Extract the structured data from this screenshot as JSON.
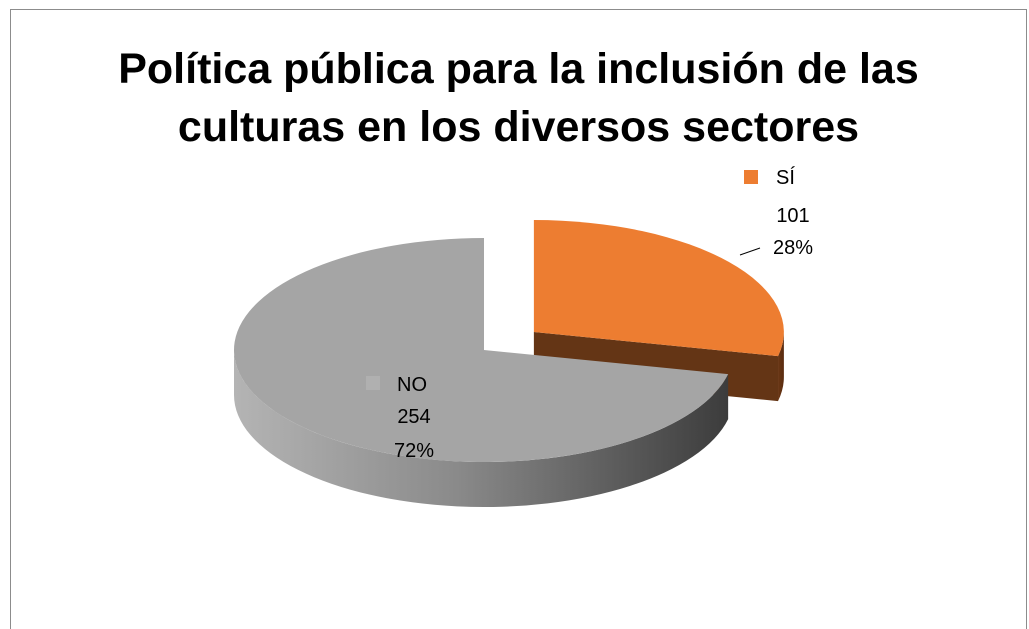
{
  "chart_data": {
    "type": "pie",
    "variant": "3d-exploded",
    "title_lines": [
      "Política pública para la inclusión de las",
      "culturas en los diversos sectores"
    ],
    "slices": [
      {
        "label": "SÍ",
        "value": 101,
        "percent": "28%",
        "color": "#ED7D31"
      },
      {
        "label": "NO",
        "value": 254,
        "percent": "72%",
        "color": "#A5A5A5"
      }
    ],
    "legend": {
      "position": "top-right"
    }
  }
}
